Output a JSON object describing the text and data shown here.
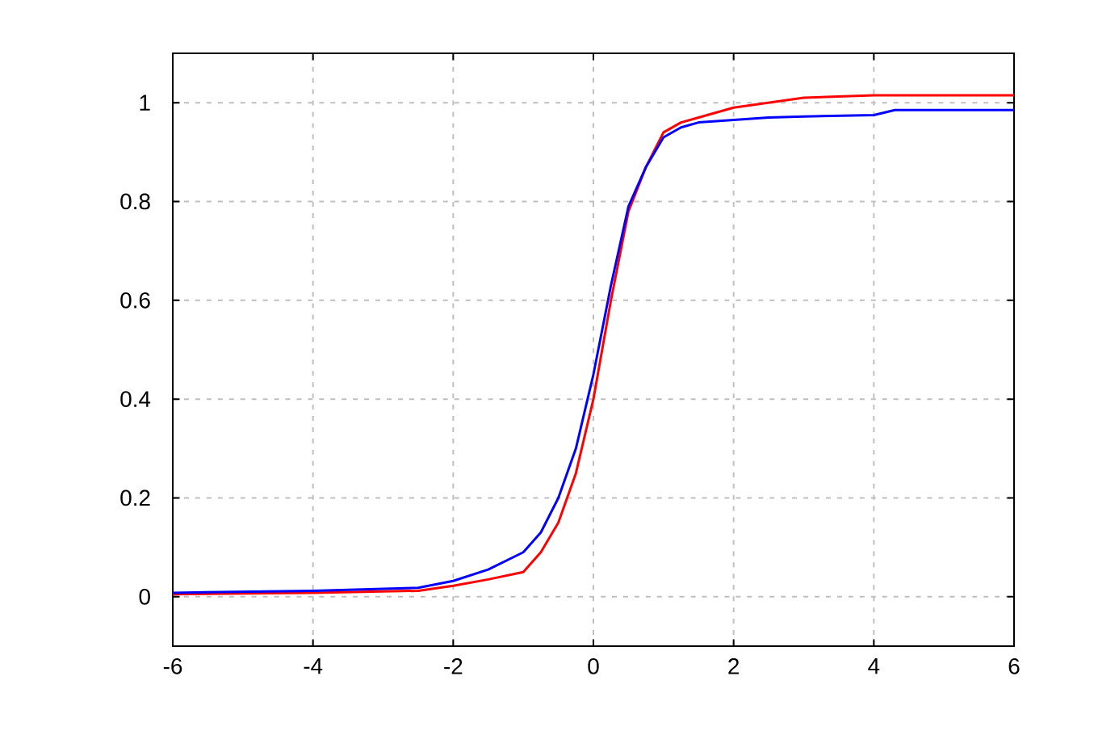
{
  "chart_data": {
    "type": "line",
    "x": [
      -6,
      -4,
      -2.5,
      -2,
      -1.5,
      -1,
      -0.75,
      -0.5,
      -0.25,
      0,
      0.25,
      0.5,
      0.75,
      1,
      1.25,
      1.5,
      2,
      2.5,
      3,
      4,
      4.3,
      6
    ],
    "series": [
      {
        "color": "#ff0000",
        "values": [
          0.005,
          0.008,
          0.012,
          0.022,
          0.035,
          0.05,
          0.09,
          0.15,
          0.25,
          0.4,
          0.6,
          0.78,
          0.87,
          0.94,
          0.96,
          0.97,
          0.99,
          1.0,
          1.01,
          1.015,
          1.015,
          1.015
        ]
      },
      {
        "color": "#0000ff",
        "values": [
          0.008,
          0.012,
          0.018,
          0.032,
          0.055,
          0.09,
          0.13,
          0.2,
          0.3,
          0.45,
          0.63,
          0.79,
          0.87,
          0.93,
          0.95,
          0.96,
          0.965,
          0.97,
          0.972,
          0.975,
          0.985,
          0.985
        ]
      }
    ],
    "xlim": [
      -6,
      6
    ],
    "ylim": [
      -0.1,
      1.1
    ],
    "xticks": [
      -6,
      -4,
      -2,
      0,
      2,
      4,
      6
    ],
    "yticks": [
      0,
      0.2,
      0.4,
      0.6,
      0.8,
      1
    ],
    "grid": true,
    "marker": "none",
    "line_style": "solid"
  }
}
